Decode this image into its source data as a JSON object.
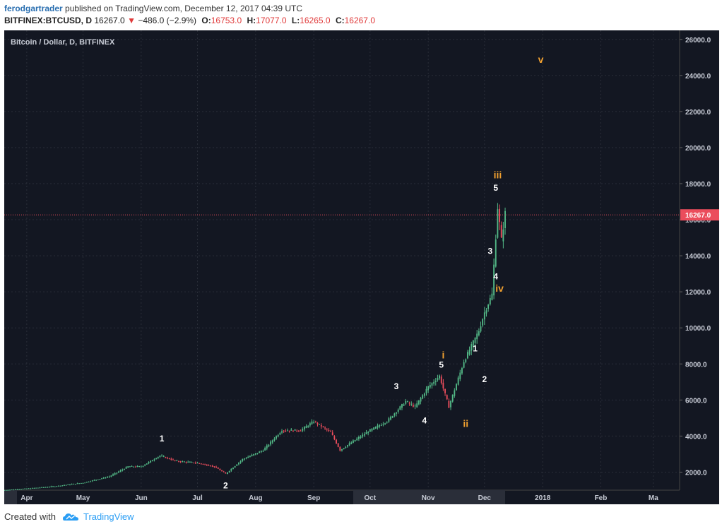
{
  "header": {
    "author": "ferodgartrader",
    "published_text": " published on TradingView.com, December 12, 2017 04:39 UTC",
    "symbol": "BITFINEX:BTCUSD, D",
    "last": "16267.0",
    "arrow": "▼",
    "change": "−486.0 (−2.9%)",
    "open_label": "O:",
    "open": "16753.0",
    "high_label": "H:",
    "high": "17077.0",
    "low_label": "L:",
    "low": "16265.0",
    "close_label": "C:",
    "close": "16267.0"
  },
  "chart_title": "Bitcoin / Dollar, D, BITFINEX",
  "price_label": "16267.0",
  "footer": {
    "created_with": "Created with",
    "brand": "TradingView"
  },
  "colors": {
    "background": "#131722",
    "up": "#53b987",
    "down": "#eb4d5c",
    "wave_orange": "#f0a030",
    "wave_white": "#ffffff",
    "price_line": "#eb4d5c"
  },
  "chart_data": {
    "type": "line",
    "title": "Bitcoin / Dollar, D, BITFINEX",
    "y_ticks": [
      "2000.0",
      "4000.0",
      "6000.0",
      "8000.0",
      "10000.0",
      "12000.0",
      "14000.0",
      "16000.0",
      "18000.0",
      "20000.0",
      "22000.0",
      "24000.0",
      "26000.0"
    ],
    "x_ticks": [
      "Apr",
      "May",
      "Jun",
      "Jul",
      "Aug",
      "Sep",
      "Oct",
      "Nov",
      "Dec",
      "2018",
      "Feb",
      "Ma"
    ],
    "ylim": [
      1000,
      26500
    ],
    "last_price": 16267.0,
    "series": [
      {
        "x": [
          "2017-03-20",
          "2017-04-01",
          "2017-04-15",
          "2017-05-01",
          "2017-05-15",
          "2017-05-25",
          "2017-06-01",
          "2017-06-11",
          "2017-06-20",
          "2017-07-01",
          "2017-07-10",
          "2017-07-16",
          "2017-07-25",
          "2017-08-05",
          "2017-08-15",
          "2017-08-25",
          "2017-09-01",
          "2017-09-10",
          "2017-09-15",
          "2017-09-22",
          "2017-10-01",
          "2017-10-10",
          "2017-10-20",
          "2017-10-25",
          "2017-11-01",
          "2017-11-07",
          "2017-11-12",
          "2017-11-20",
          "2017-11-28",
          "2017-12-01",
          "2017-12-05",
          "2017-12-08",
          "2017-12-10",
          "2017-12-12"
        ],
        "values": [
          1000,
          1080,
          1200,
          1400,
          1750,
          2300,
          2300,
          2900,
          2600,
          2500,
          2300,
          1900,
          2700,
          3200,
          4300,
          4300,
          4800,
          4200,
          3200,
          3700,
          4300,
          4800,
          5900,
          5600,
          6700,
          7300,
          5600,
          8100,
          9800,
          10800,
          11800,
          16600,
          14800,
          16267
        ]
      }
    ],
    "wave_labels": [
      {
        "text": "1",
        "x": "2017-06-12",
        "y": 3700,
        "color": "white"
      },
      {
        "text": "2",
        "x": "2017-07-16",
        "y": 1100,
        "color": "white"
      },
      {
        "text": "3",
        "x": "2017-10-15",
        "y": 6600,
        "color": "white"
      },
      {
        "text": "4",
        "x": "2017-10-30",
        "y": 4700,
        "color": "white"
      },
      {
        "text": "5",
        "x": "2017-11-08",
        "y": 7800,
        "color": "white"
      },
      {
        "text": "i",
        "x": "2017-11-09",
        "y": 8300,
        "color": "orange"
      },
      {
        "text": "ii",
        "x": "2017-11-21",
        "y": 4500,
        "color": "orange"
      },
      {
        "text": "1",
        "x": "2017-11-26",
        "y": 8700,
        "color": "white"
      },
      {
        "text": "2",
        "x": "2017-12-01",
        "y": 7000,
        "color": "white"
      },
      {
        "text": "3",
        "x": "2017-12-04",
        "y": 14100,
        "color": "white"
      },
      {
        "text": "4",
        "x": "2017-12-07",
        "y": 12700,
        "color": "white"
      },
      {
        "text": "5",
        "x": "2017-12-07",
        "y": 17600,
        "color": "white"
      },
      {
        "text": "iii",
        "x": "2017-12-08",
        "y": 18300,
        "color": "orange"
      },
      {
        "text": "iv",
        "x": "2017-12-09",
        "y": 12000,
        "color": "orange"
      },
      {
        "text": "v",
        "x": "2017-12-31",
        "y": 24700,
        "color": "orange"
      }
    ]
  }
}
